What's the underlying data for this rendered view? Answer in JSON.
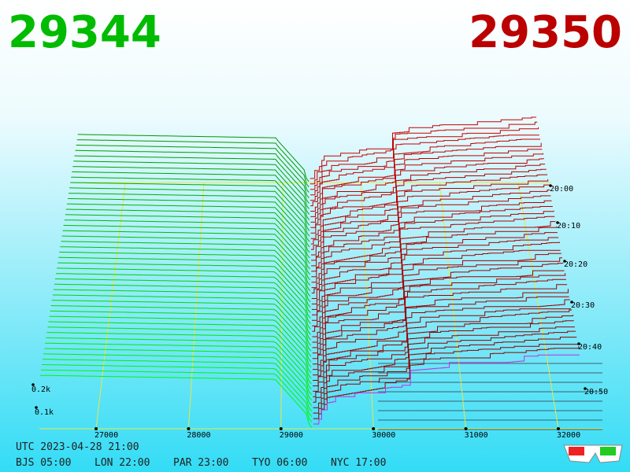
{
  "header": {
    "bid": 29344,
    "ask": 29350
  },
  "price_axis": {
    "ticks": [
      27000,
      28000,
      29000,
      30000,
      31000,
      32000
    ]
  },
  "volume_axis": {
    "ticks": [
      "0.2k",
      "0.1k"
    ]
  },
  "time_axis": {
    "ticks": [
      "20:00",
      "20:10",
      "20:20",
      "20:30",
      "20:40",
      "20:50"
    ]
  },
  "footer": {
    "utc": "UTC 2023-04-28 21:00",
    "zones": [
      "BJS 05:00",
      "LON 22:00",
      "PAR 23:00",
      "TYO 06:00",
      "NYC 17:00"
    ]
  }
}
